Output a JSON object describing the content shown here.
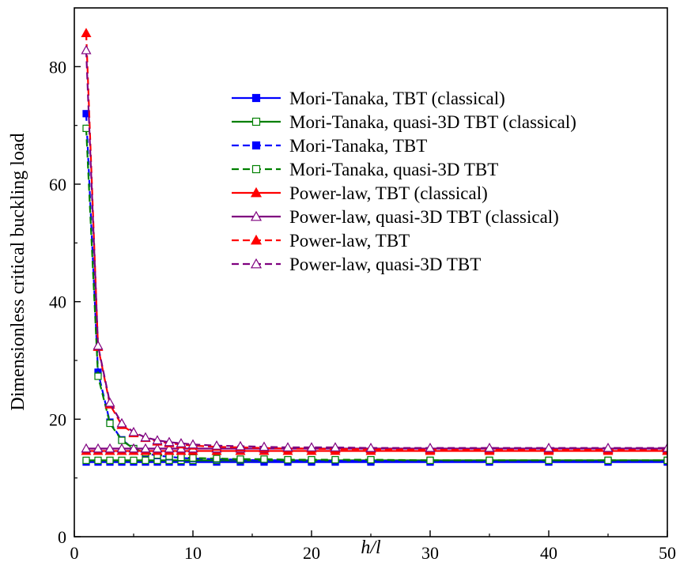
{
  "chart_data": {
    "type": "line",
    "title": "",
    "xlabel": "h/l",
    "ylabel": "Dimensionless critical buckling load",
    "xlim": [
      0,
      50
    ],
    "ylim": [
      0,
      90
    ],
    "xticks": [
      "0",
      "10",
      "20",
      "30",
      "40",
      "50"
    ],
    "yticks": [
      "0",
      "20",
      "40",
      "60",
      "80"
    ],
    "grid": false,
    "legend_position": "upper-right",
    "x": [
      1,
      2,
      3,
      4,
      5,
      6,
      7,
      8,
      9,
      10,
      12,
      14,
      16,
      18,
      20,
      22,
      25,
      30,
      35,
      40,
      45,
      50
    ],
    "series": [
      {
        "name": "Mori-Tanaka, TBT (classical)",
        "color": "#0000ff",
        "dash": "solid",
        "marker": "square-filled",
        "values": [
          12.7,
          12.7,
          12.7,
          12.7,
          12.7,
          12.7,
          12.7,
          12.7,
          12.7,
          12.7,
          12.7,
          12.7,
          12.7,
          12.7,
          12.7,
          12.7,
          12.7,
          12.7,
          12.7,
          12.7,
          12.7,
          12.7
        ]
      },
      {
        "name": "Mori-Tanaka, quasi-3D TBT (classical)",
        "color": "#008000",
        "dash": "solid",
        "marker": "square-open",
        "values": [
          13.0,
          13.0,
          13.0,
          13.0,
          13.0,
          13.0,
          13.0,
          13.0,
          13.0,
          13.0,
          13.0,
          13.0,
          13.0,
          13.0,
          13.0,
          13.0,
          13.0,
          13.0,
          13.0,
          13.0,
          13.0,
          13.0
        ]
      },
      {
        "name": "Mori-Tanaka, TBT",
        "color": "#0000ff",
        "dash": "dashed",
        "marker": "square-filled",
        "values": [
          72.0,
          28.0,
          19.5,
          16.5,
          15.0,
          14.2,
          13.8,
          13.6,
          13.4,
          13.3,
          13.2,
          13.1,
          13.0,
          13.0,
          12.9,
          12.9,
          12.9,
          12.8,
          12.8,
          12.8,
          12.8,
          12.8
        ]
      },
      {
        "name": "Mori-Tanaka, quasi-3D TBT",
        "color": "#008000",
        "dash": "dashed",
        "marker": "square-open",
        "values": [
          69.5,
          27.3,
          19.3,
          16.4,
          15.0,
          14.3,
          13.9,
          13.7,
          13.5,
          13.4,
          13.3,
          13.2,
          13.2,
          13.1,
          13.1,
          13.1,
          13.1,
          13.0,
          13.0,
          13.0,
          13.0,
          13.0
        ]
      },
      {
        "name": "Power-law, TBT (classical)",
        "color": "#ff0000",
        "dash": "solid",
        "marker": "triangle-filled",
        "values": [
          14.6,
          14.6,
          14.6,
          14.6,
          14.6,
          14.6,
          14.6,
          14.6,
          14.6,
          14.6,
          14.6,
          14.6,
          14.6,
          14.6,
          14.6,
          14.6,
          14.6,
          14.6,
          14.6,
          14.6,
          14.6,
          14.6
        ]
      },
      {
        "name": "Power-law, quasi-3D TBT (classical)",
        "color": "#7f007f",
        "dash": "solid",
        "marker": "triangle-open",
        "values": [
          15.0,
          15.0,
          15.0,
          15.0,
          15.0,
          15.0,
          15.0,
          15.0,
          15.0,
          15.0,
          15.0,
          15.0,
          15.0,
          15.0,
          15.0,
          15.0,
          15.0,
          15.0,
          15.0,
          15.0,
          15.0,
          15.0
        ]
      },
      {
        "name": "Power-law, TBT",
        "color": "#ff0000",
        "dash": "dashed",
        "marker": "triangle-filled",
        "values": [
          85.7,
          32.3,
          22.5,
          19.0,
          17.6,
          16.8,
          16.2,
          15.9,
          15.7,
          15.5,
          15.3,
          15.2,
          15.1,
          15.0,
          15.0,
          14.9,
          14.9,
          14.8,
          14.8,
          14.8,
          14.8,
          14.7
        ]
      },
      {
        "name": "Power-law, quasi-3D TBT",
        "color": "#7f007f",
        "dash": "dashed",
        "marker": "triangle-open",
        "values": [
          82.8,
          32.5,
          22.8,
          19.3,
          17.8,
          16.9,
          16.4,
          16.1,
          15.9,
          15.7,
          15.5,
          15.4,
          15.3,
          15.2,
          15.2,
          15.2,
          15.1,
          15.1,
          15.1,
          15.1,
          15.1,
          15.1
        ]
      }
    ]
  }
}
